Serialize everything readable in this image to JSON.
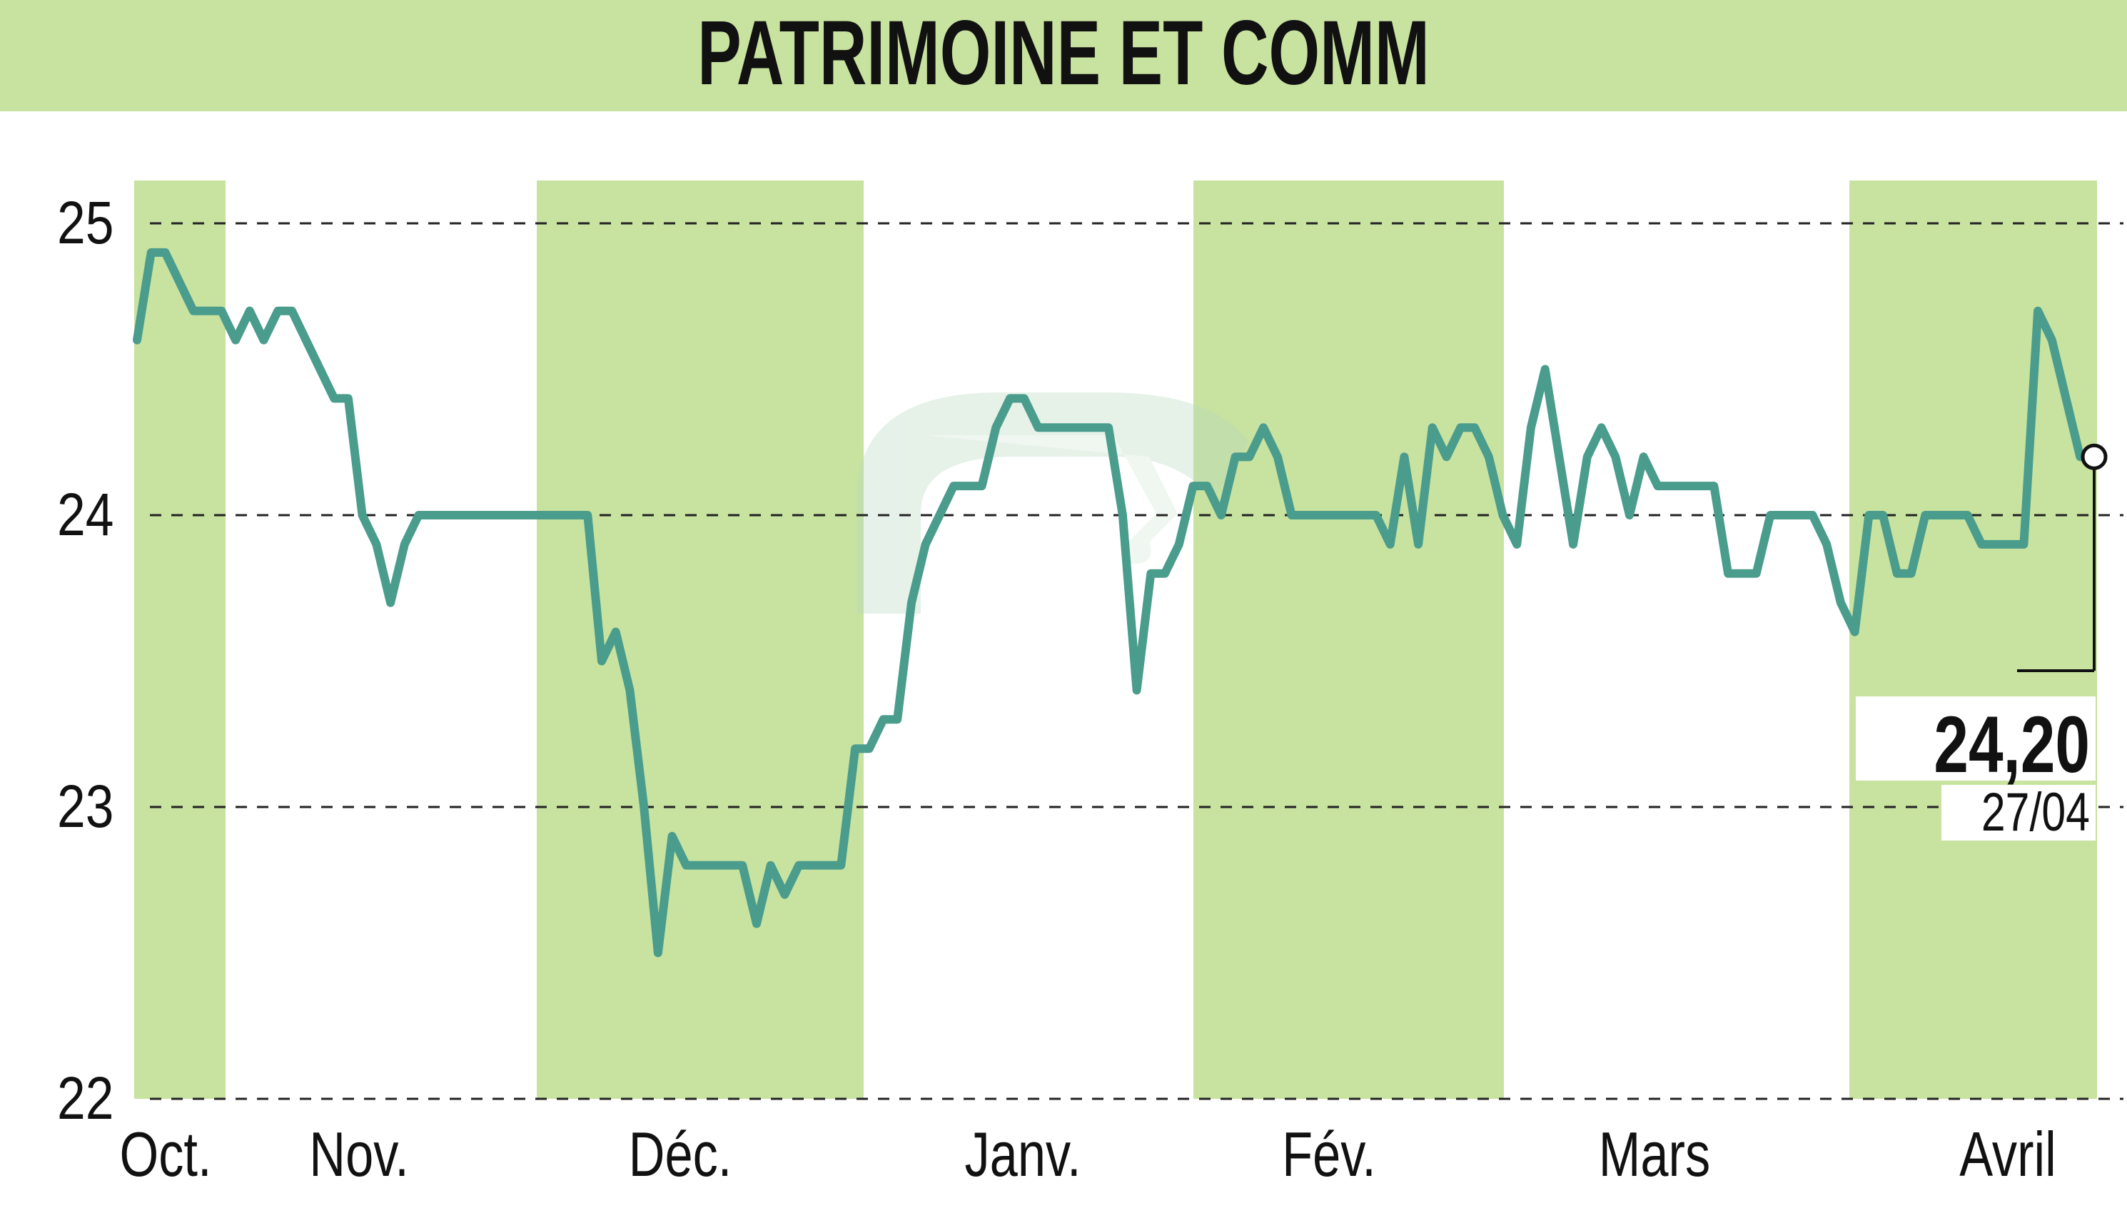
{
  "title": "PATRIMOINE ET COMM",
  "last_value": "24,20",
  "last_date": "27/04",
  "colors": {
    "banner": "#c8e2a0",
    "month_band": "#c8e2a0",
    "line": "#4a9c8c",
    "grid": "#222222",
    "text": "#111111"
  },
  "chart_data": {
    "type": "line",
    "title": "PATRIMOINE ET COMM",
    "xlabel": "",
    "ylabel": "",
    "ylim": [
      22,
      25
    ],
    "y_ticks": [
      "25",
      "24",
      "23",
      "22"
    ],
    "x_ticks": [
      "Oct.",
      "Nov.",
      "Déc.",
      "Janv.",
      "Fév.",
      "Mars",
      "Avril"
    ],
    "grid": "horizontal dashed",
    "shaded_months": [
      "Oct.",
      "Déc.",
      "Fév.",
      "Avril"
    ],
    "last": {
      "date": "27/04",
      "value": 24.2
    },
    "series": [
      {
        "values": [
          24.6,
          24.9,
          24.9,
          24.8,
          24.7,
          24.7,
          24.7,
          24.6,
          24.7,
          24.6,
          24.7,
          24.7,
          24.6,
          24.5,
          24.4,
          24.4,
          24.0,
          23.9,
          23.7,
          23.9,
          24.0,
          24.0,
          24.0,
          24.0,
          24.0,
          24.0,
          24.0,
          24.0,
          24.0,
          24.0,
          24.0,
          24.0,
          24.0,
          23.5,
          23.6,
          23.4,
          23.0,
          22.5,
          22.9,
          22.8,
          22.8,
          22.8,
          22.8,
          22.8,
          22.6,
          22.8,
          22.7,
          22.8,
          22.8,
          22.8,
          22.8,
          23.2,
          23.2,
          23.3,
          23.3,
          23.7,
          23.9,
          24.0,
          24.1,
          24.1,
          24.1,
          24.3,
          24.4,
          24.4,
          24.3,
          24.3,
          24.3,
          24.3,
          24.3,
          24.3,
          24.0,
          23.4,
          23.8,
          23.8,
          23.9,
          24.1,
          24.1,
          24.0,
          24.2,
          24.2,
          24.3,
          24.2,
          24.0,
          24.0,
          24.0,
          24.0,
          24.0,
          24.0,
          24.0,
          23.9,
          24.2,
          23.9,
          24.3,
          24.2,
          24.3,
          24.3,
          24.2,
          24.0,
          23.9,
          24.3,
          24.5,
          24.2,
          23.9,
          24.2,
          24.3,
          24.2,
          24.0,
          24.2,
          24.1,
          24.1,
          24.1,
          24.1,
          24.1,
          23.8,
          23.8,
          23.8,
          24.0,
          24.0,
          24.0,
          24.0,
          23.9,
          23.7,
          23.6,
          24.0,
          24.0,
          23.8,
          23.8,
          24.0,
          24.0,
          24.0,
          24.0,
          23.9,
          23.9,
          23.9,
          23.9,
          24.7,
          24.6,
          24.4,
          24.2,
          24.2
        ]
      }
    ]
  }
}
